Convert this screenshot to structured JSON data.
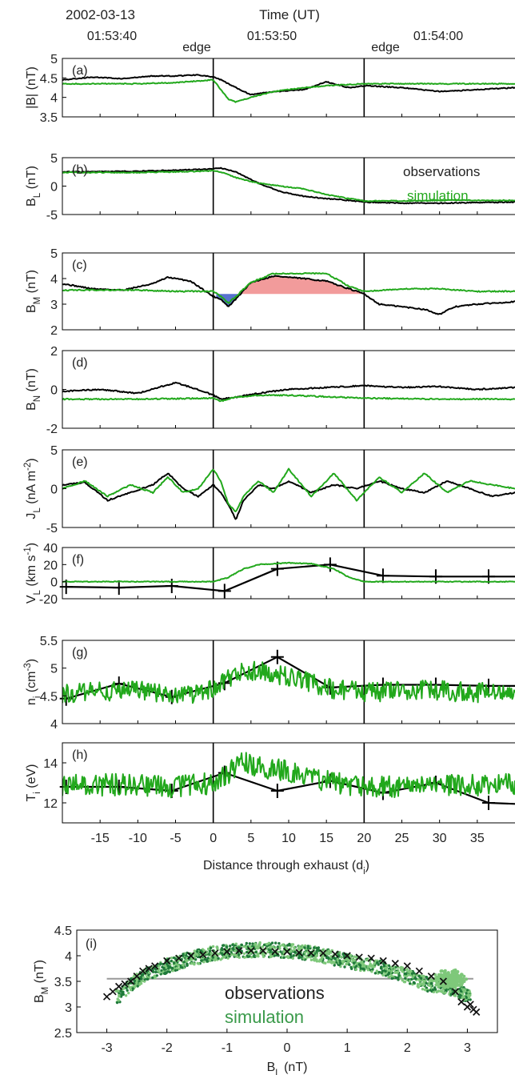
{
  "header": {
    "date": "2002-03-13",
    "time_label": "Time (UT)",
    "times": [
      "01:53:40",
      "01:53:50",
      "01:54:00"
    ],
    "edge_label": "edge"
  },
  "colors": {
    "observations": "#000000",
    "simulation": "#22a81c",
    "below": "#3b58c8",
    "above": "#f08a8a",
    "scatter_obs": "#111111",
    "scatter_sim_light": "#7ec87a",
    "scatter_sim_dark": "#1f7a3a"
  },
  "chart_data": [
    {
      "type": "line",
      "panel": "(a)",
      "ylabel": "|B| (nT)",
      "ylim": [
        3.5,
        5
      ],
      "yticks": [
        "3.5",
        "4",
        "4.5",
        "5"
      ],
      "xlim": [
        -20,
        40
      ],
      "series": [
        {
          "name": "observations",
          "x": [
            -20,
            -16,
            -12,
            -8,
            -5,
            -2,
            0,
            1,
            3,
            5,
            8,
            12,
            15,
            18,
            20,
            25,
            30,
            35,
            40
          ],
          "y": [
            4.45,
            4.52,
            4.48,
            4.55,
            4.55,
            4.58,
            4.52,
            4.45,
            4.25,
            4.07,
            4.15,
            4.2,
            4.4,
            4.25,
            4.3,
            4.25,
            4.15,
            4.2,
            4.25
          ]
        },
        {
          "name": "simulation",
          "x": [
            -20,
            -15,
            -10,
            -5,
            0,
            1,
            2,
            3,
            5,
            8,
            12,
            15,
            20,
            25,
            30,
            35,
            40
          ],
          "y": [
            4.35,
            4.35,
            4.35,
            4.38,
            4.45,
            4.2,
            3.95,
            3.88,
            4.0,
            4.15,
            4.25,
            4.3,
            4.35,
            4.35,
            4.35,
            4.35,
            4.35
          ]
        }
      ]
    },
    {
      "type": "line",
      "panel": "(b)",
      "ylabel": "B_L (nT)",
      "ylim": [
        -5,
        5
      ],
      "yticks": [
        "-5",
        "0",
        "5"
      ],
      "xlim": [
        -20,
        40
      ],
      "legend": [
        "observations",
        "simulation"
      ],
      "series": [
        {
          "name": "observations",
          "x": [
            -20,
            -10,
            -5,
            0,
            1,
            3,
            6,
            9,
            12,
            15,
            18,
            20,
            25,
            30,
            35,
            40
          ],
          "y": [
            2.5,
            2.6,
            2.8,
            3.0,
            3.2,
            2.5,
            0.5,
            -1.0,
            -1.8,
            -2.2,
            -2.5,
            -2.8,
            -3.0,
            -3.0,
            -2.9,
            -2.8
          ]
        },
        {
          "name": "simulation",
          "x": [
            -20,
            -10,
            -5,
            0,
            1,
            3,
            6,
            9,
            12,
            15,
            18,
            20,
            25,
            30,
            35,
            40
          ],
          "y": [
            2.4,
            2.4,
            2.5,
            2.7,
            2.5,
            1.5,
            0.5,
            0.0,
            -0.5,
            -1.5,
            -2.2,
            -2.6,
            -2.6,
            -2.5,
            -2.5,
            -2.5
          ]
        }
      ]
    },
    {
      "type": "line",
      "panel": "(c)",
      "ylabel": "B_M (nT)",
      "ylim": [
        2,
        5
      ],
      "yticks": [
        "2",
        "3",
        "4",
        "5"
      ],
      "xlim": [
        -20,
        40
      ],
      "reference_level": 3.4,
      "series": [
        {
          "name": "observations",
          "x": [
            -20,
            -16,
            -12,
            -8,
            -6,
            -3,
            0,
            1,
            2,
            3,
            5,
            8,
            12,
            15,
            18,
            20,
            22,
            25,
            28,
            30,
            32,
            35,
            40
          ],
          "y": [
            3.8,
            3.6,
            3.55,
            3.8,
            4.05,
            3.9,
            3.3,
            3.2,
            2.9,
            3.2,
            3.85,
            4.1,
            4.0,
            3.9,
            3.6,
            3.4,
            3.0,
            2.9,
            2.8,
            2.6,
            2.9,
            3.0,
            3.1
          ]
        },
        {
          "name": "simulation",
          "x": [
            -20,
            -10,
            -5,
            0,
            1,
            2,
            3,
            5,
            8,
            12,
            15,
            18,
            20,
            25,
            30,
            35,
            40
          ],
          "y": [
            3.55,
            3.55,
            3.5,
            3.5,
            3.3,
            3.05,
            3.3,
            3.85,
            4.2,
            4.2,
            4.2,
            3.7,
            3.5,
            3.6,
            3.6,
            3.5,
            3.5
          ]
        }
      ]
    },
    {
      "type": "line",
      "panel": "(d)",
      "ylabel": "B_N (nT)",
      "ylim": [
        -2,
        2
      ],
      "yticks": [
        "-2",
        "0",
        "2"
      ],
      "xlim": [
        -20,
        40
      ],
      "series": [
        {
          "name": "observations",
          "x": [
            -20,
            -15,
            -10,
            -5,
            -2,
            0,
            1,
            3,
            6,
            10,
            15,
            20,
            25,
            30,
            35,
            40
          ],
          "y": [
            -0.1,
            0.0,
            -0.2,
            0.35,
            0.0,
            -0.3,
            -0.5,
            -0.4,
            -0.2,
            0.0,
            0.1,
            0.2,
            0.1,
            0.15,
            0.0,
            0.1
          ]
        },
        {
          "name": "simulation",
          "x": [
            -20,
            -10,
            0,
            1,
            3,
            6,
            10,
            20,
            30,
            40
          ],
          "y": [
            -0.5,
            -0.5,
            -0.45,
            -0.6,
            -0.4,
            -0.3,
            -0.3,
            -0.45,
            -0.5,
            -0.5
          ]
        }
      ]
    },
    {
      "type": "line",
      "panel": "(e)",
      "ylabel": "J_L (nA m^-2)",
      "ylim": [
        -5,
        5
      ],
      "yticks": [
        "-5",
        "0",
        "5"
      ],
      "xlim": [
        -20,
        40
      ],
      "series": [
        {
          "name": "observations",
          "x": [
            -20,
            -17,
            -14,
            -11,
            -8,
            -6,
            -4,
            -2,
            0,
            1,
            2,
            3,
            4,
            6,
            8,
            10,
            13,
            16,
            19,
            22,
            25,
            28,
            31,
            34,
            37,
            40
          ],
          "y": [
            0.5,
            0.8,
            -1.5,
            -0.5,
            0.5,
            2.0,
            0.0,
            -1.0,
            0.5,
            -0.5,
            -2.0,
            -4.0,
            -1.5,
            0.5,
            0.0,
            1.0,
            -0.5,
            0.5,
            0.0,
            1.0,
            0.0,
            -0.5,
            1.0,
            0.0,
            -1.0,
            -0.5
          ]
        },
        {
          "name": "simulation",
          "x": [
            -20,
            -17,
            -14,
            -11,
            -8,
            -6,
            -4,
            -2,
            0,
            1,
            2,
            3,
            4,
            6,
            8,
            10,
            13,
            16,
            19,
            22,
            25,
            28,
            31,
            34,
            37,
            40
          ],
          "y": [
            0.0,
            1.0,
            -1.0,
            0.5,
            -0.5,
            1.5,
            -0.5,
            0.0,
            2.5,
            1.0,
            -2.0,
            -3.0,
            -1.0,
            1.0,
            -0.5,
            2.5,
            -1.0,
            2.0,
            -1.5,
            1.5,
            -0.5,
            2.0,
            -0.5,
            1.0,
            0.5,
            0.0
          ]
        }
      ]
    },
    {
      "type": "line",
      "panel": "(f)",
      "ylabel": "V_L (km s^-1)",
      "ylim": [
        -20,
        40
      ],
      "yticks": [
        "-20",
        "0",
        "20",
        "40"
      ],
      "xlim": [
        -20,
        40
      ],
      "series": [
        {
          "name": "observations",
          "x": [
            -19.5,
            -12.5,
            -5.5,
            1.5,
            8.5,
            15.5,
            22.5,
            29.5,
            36.5,
            40
          ],
          "y": [
            -6,
            -7,
            -5,
            -11,
            15,
            20,
            7,
            6,
            6,
            6
          ],
          "markers": true
        },
        {
          "name": "simulation",
          "x": [
            -20,
            -10,
            -5,
            0,
            2,
            4,
            6,
            10,
            13,
            16,
            18,
            20,
            25,
            30,
            35,
            40
          ],
          "y": [
            0,
            0,
            0,
            0,
            5,
            15,
            20,
            22,
            21,
            15,
            5,
            0,
            0,
            0,
            0,
            0
          ]
        }
      ]
    },
    {
      "type": "line",
      "panel": "(g)",
      "ylabel": "n_i (cm^-3)",
      "ylim": [
        4,
        5.5
      ],
      "yticks": [
        "4",
        "4.5",
        "5",
        "5.5"
      ],
      "xlim": [
        -20,
        40
      ],
      "series": [
        {
          "name": "observations",
          "x": [
            -19.5,
            -12.5,
            -5.5,
            1.5,
            8.5,
            15.5,
            22.5,
            29.5,
            36.5,
            40
          ],
          "y": [
            4.45,
            4.72,
            4.48,
            4.73,
            5.2,
            4.65,
            4.7,
            4.7,
            4.68,
            4.68
          ],
          "markers": true
        },
        {
          "name": "simulation",
          "noisy": true,
          "noise": 0.18,
          "x": [
            -20,
            -10,
            -5,
            0,
            2,
            4,
            6,
            10,
            13,
            16,
            18,
            20,
            25,
            30,
            35,
            40
          ],
          "y": [
            4.55,
            4.6,
            4.5,
            4.6,
            4.8,
            4.95,
            4.95,
            4.85,
            4.75,
            4.6,
            4.6,
            4.55,
            4.6,
            4.6,
            4.55,
            4.6
          ]
        }
      ]
    },
    {
      "type": "line",
      "panel": "(h)",
      "ylabel": "T_i (eV)",
      "ylim": [
        11,
        15
      ],
      "yticks": [
        "12",
        "14"
      ],
      "xlim": [
        -20,
        40
      ],
      "xticks": [
        "-15",
        "-10",
        "-5",
        "0",
        "5",
        "10",
        "15",
        "20",
        "25",
        "30",
        "35"
      ],
      "xlabel": "Distance through exhaust (d_i)",
      "series": [
        {
          "name": "observations",
          "x": [
            -19.5,
            -12.5,
            -5.5,
            1.5,
            8.5,
            15.5,
            22.5,
            29.5,
            36.5,
            40
          ],
          "y": [
            12.8,
            12.8,
            12.6,
            13.5,
            12.6,
            13.1,
            12.5,
            13.0,
            12.0,
            11.95
          ],
          "markers": true
        },
        {
          "name": "simulation",
          "noisy": true,
          "noise": 0.55,
          "x": [
            -20,
            -10,
            -5,
            0,
            2,
            4,
            6,
            10,
            13,
            16,
            18,
            20,
            25,
            30,
            35,
            40
          ],
          "y": [
            12.9,
            12.9,
            12.8,
            13.0,
            13.5,
            14.0,
            13.8,
            13.6,
            13.3,
            13.0,
            12.9,
            12.8,
            12.8,
            12.9,
            12.9,
            12.9
          ]
        }
      ]
    },
    {
      "type": "scatter",
      "panel": "(i)",
      "xlabel": "B_L (nT)",
      "ylabel": "B_M (nT)",
      "xlim": [
        -3.5,
        3.5
      ],
      "ylim": [
        2.5,
        4.5
      ],
      "xticks": [
        "-3",
        "-2",
        "-1",
        "0",
        "1",
        "2",
        "3"
      ],
      "yticks": [
        "2.5",
        "3",
        "3.5",
        "4",
        "4.5"
      ],
      "reference_level": 3.55,
      "legend": [
        "observations",
        "simulation"
      ],
      "series": [
        {
          "name": "observations",
          "marker": "x",
          "x": [
            -3.0,
            -2.9,
            -2.8,
            -2.7,
            -2.6,
            -2.5,
            -2.4,
            -2.3,
            -2.2,
            -2.0,
            -1.8,
            -1.6,
            -1.4,
            -1.2,
            -1.0,
            -0.8,
            -0.6,
            -0.4,
            -0.2,
            0.0,
            0.2,
            0.4,
            0.6,
            0.8,
            1.0,
            1.2,
            1.4,
            1.6,
            1.8,
            2.0,
            2.2,
            2.4,
            2.6,
            2.8,
            2.9,
            3.0,
            3.05,
            3.1,
            3.15
          ],
          "y": [
            3.2,
            3.3,
            3.4,
            3.45,
            3.5,
            3.6,
            3.7,
            3.75,
            3.8,
            3.9,
            3.95,
            4.0,
            4.02,
            4.05,
            4.08,
            4.1,
            4.1,
            4.1,
            4.08,
            4.08,
            4.06,
            4.05,
            4.05,
            4.03,
            4.0,
            3.97,
            3.95,
            3.9,
            3.85,
            3.8,
            3.7,
            3.6,
            3.5,
            3.3,
            3.1,
            3.0,
            3.05,
            2.95,
            2.9
          ]
        },
        {
          "name": "simulation",
          "band": true,
          "x": [
            -2.8,
            -2.6,
            -2.4,
            -2.2,
            -2.0,
            -1.6,
            -1.2,
            -0.8,
            -0.4,
            0.0,
            0.4,
            0.8,
            1.2,
            1.6,
            2.0,
            2.3,
            2.6,
            2.8,
            3.0
          ],
          "y": [
            3.3,
            3.55,
            3.7,
            3.8,
            3.9,
            4.05,
            4.15,
            4.2,
            4.22,
            4.2,
            4.15,
            4.05,
            3.95,
            3.85,
            3.7,
            3.55,
            3.5,
            3.45,
            3.3
          ]
        }
      ]
    }
  ]
}
